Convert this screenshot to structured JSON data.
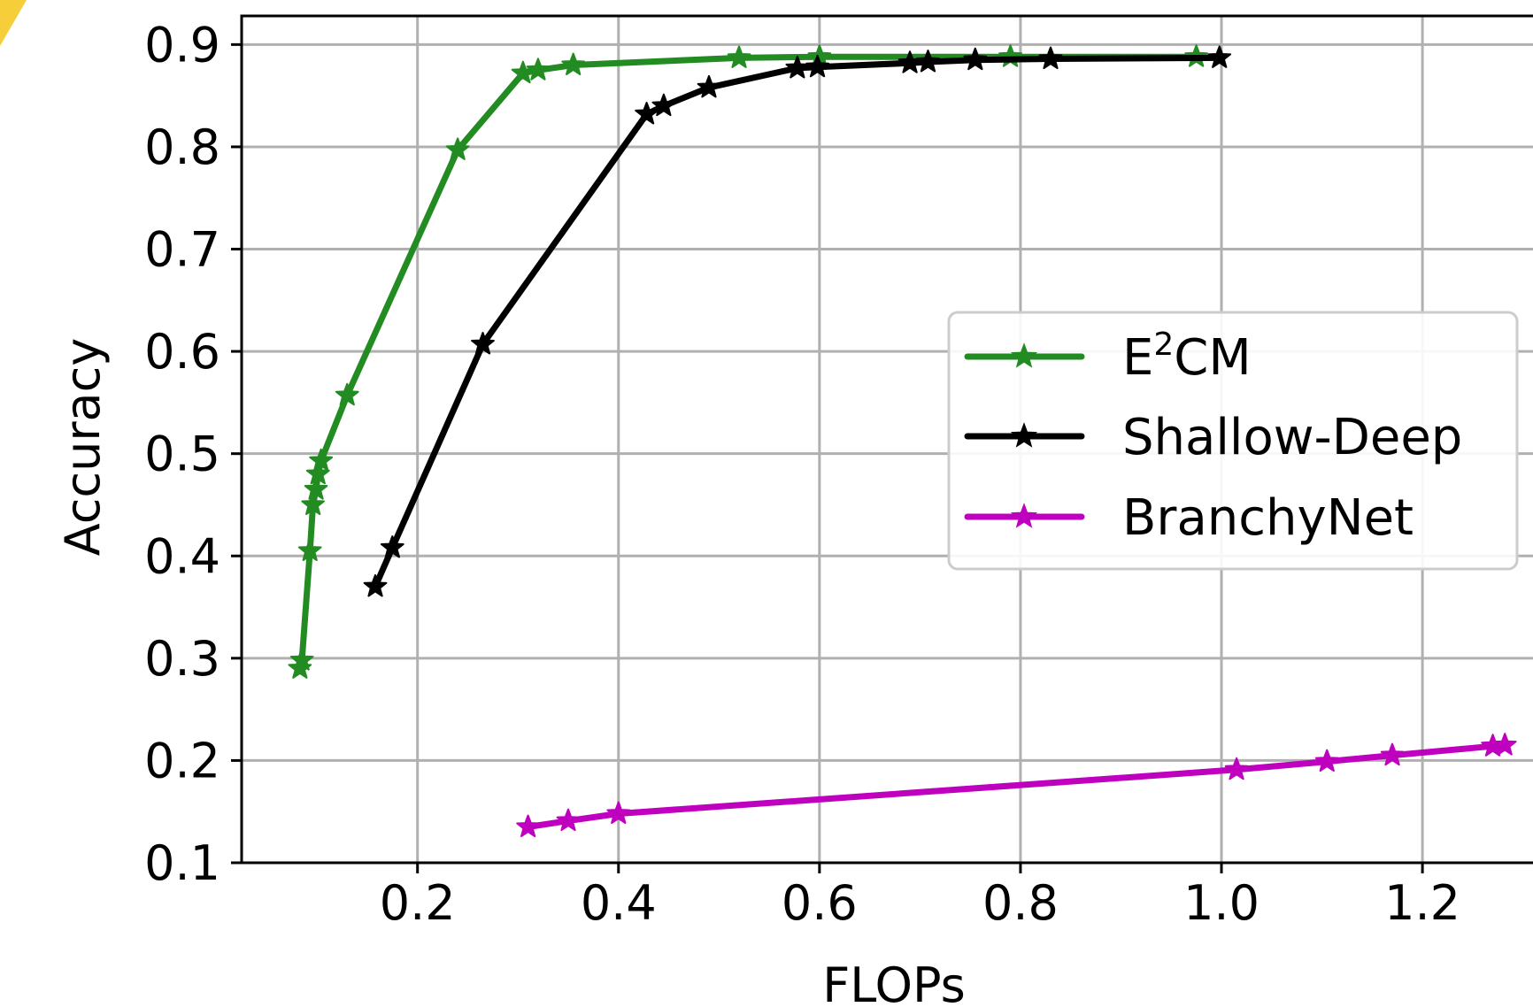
{
  "chart_data": {
    "type": "line",
    "xlabel": "FLOPs",
    "ylabel": "Accuracy",
    "xlim": [
      0.025,
      1.31
    ],
    "ylim": [
      0.1,
      0.928
    ],
    "xticks": [
      "0.2",
      "0.4",
      "0.6",
      "0.8",
      "1.0",
      "1.2"
    ],
    "xtick_values": [
      0.2,
      0.4,
      0.6,
      0.8,
      1.0,
      1.2
    ],
    "yticks": [
      "0.1",
      "0.2",
      "0.3",
      "0.4",
      "0.5",
      "0.6",
      "0.7",
      "0.8",
      "0.9"
    ],
    "ytick_values": [
      0.1,
      0.2,
      0.3,
      0.4,
      0.5,
      0.6,
      0.7,
      0.8,
      0.9
    ],
    "grid": true,
    "legend_position": "right",
    "series": [
      {
        "name": "E²CM",
        "name_base": "E",
        "name_sup": "2",
        "name_rest": "CM",
        "color": "#228b22",
        "marker": "star",
        "x": [
          0.083,
          0.085,
          0.093,
          0.096,
          0.099,
          0.101,
          0.104,
          0.13,
          0.24,
          0.305,
          0.32,
          0.355,
          0.52,
          0.6,
          0.79,
          0.975
        ],
        "y": [
          0.29,
          0.298,
          0.405,
          0.45,
          0.465,
          0.48,
          0.493,
          0.557,
          0.797,
          0.872,
          0.875,
          0.88,
          0.887,
          0.888,
          0.888,
          0.888
        ]
      },
      {
        "name": "Shallow-Deep",
        "color": "#000000",
        "marker": "star",
        "x": [
          0.158,
          0.175,
          0.265,
          0.428,
          0.445,
          0.49,
          0.578,
          0.598,
          0.69,
          0.708,
          0.755,
          0.83,
          0.998
        ],
        "y": [
          0.37,
          0.408,
          0.607,
          0.832,
          0.84,
          0.858,
          0.877,
          0.878,
          0.882,
          0.883,
          0.885,
          0.886,
          0.887
        ]
      },
      {
        "name": "BranchyNet",
        "color": "#bf00bf",
        "marker": "star",
        "x": [
          0.31,
          0.35,
          0.4,
          1.015,
          1.105,
          1.17,
          1.27,
          1.282
        ],
        "y": [
          0.135,
          0.141,
          0.148,
          0.191,
          0.199,
          0.205,
          0.214,
          0.215
        ]
      }
    ]
  }
}
